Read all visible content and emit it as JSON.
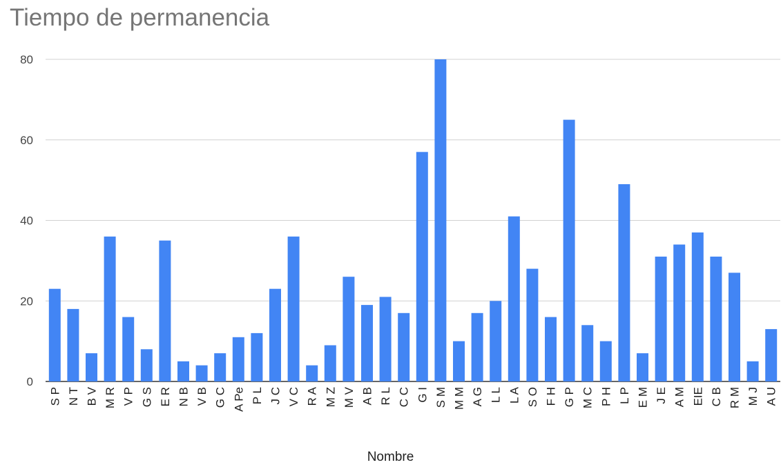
{
  "chart_data": {
    "type": "bar",
    "title": "Tiempo de permanencia",
    "xlabel": "Nombre",
    "ylabel": "",
    "ylim": [
      0,
      80
    ],
    "yticks": [
      0,
      20,
      40,
      60,
      80
    ],
    "grid": true,
    "bar_color": "#4285f4",
    "categories": [
      "S P",
      "N T",
      "B V",
      "M R",
      "V P",
      "G S",
      "E R",
      "N B",
      "V B",
      "G C",
      "A Pe",
      "P L",
      "J C",
      "V C",
      "R A",
      "M Z",
      "M V",
      "A B",
      "R L",
      "C C",
      "G I",
      "S M",
      "M M",
      "A G",
      "L L",
      "L A",
      "S O",
      "F H",
      "G P",
      "M C",
      "P H",
      "L P",
      "E M",
      "J E",
      "A M",
      "EIE",
      "C B",
      "R M",
      "M J",
      "A U"
    ],
    "values": [
      23,
      18,
      7,
      36,
      16,
      8,
      35,
      5,
      4,
      7,
      11,
      12,
      23,
      36,
      4,
      9,
      26,
      19,
      21,
      17,
      57,
      80,
      10,
      17,
      20,
      41,
      28,
      16,
      65,
      14,
      10,
      49,
      7,
      31,
      34,
      37,
      31,
      27,
      5,
      13
    ]
  }
}
